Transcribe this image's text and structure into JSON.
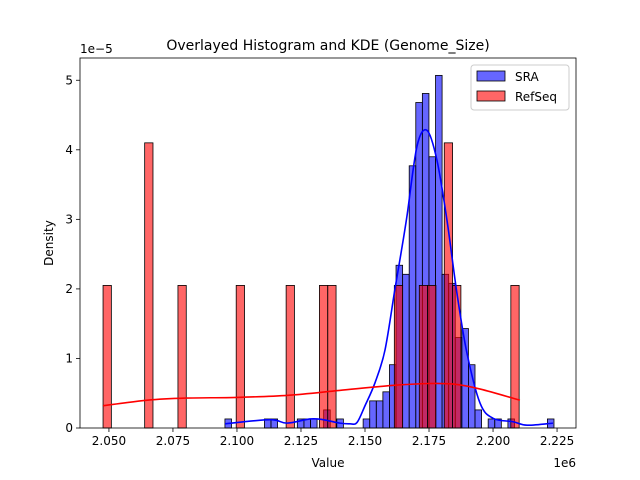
{
  "chart_data": {
    "type": "histogram+kde",
    "title": "Overlayed Histogram and KDE (Genome_Size)",
    "xlabel": "Value",
    "ylabel": "Density",
    "x_offset_label": "1e6",
    "y_offset_label": "1e−5",
    "xlim": [
      2.0387,
      2.2324
    ],
    "ylim": [
      0,
      5.32
    ],
    "x_ticks": [
      "2.050",
      "2.075",
      "2.100",
      "2.125",
      "2.150",
      "2.175",
      "2.200",
      "2.225"
    ],
    "x_tick_values": [
      2.05,
      2.075,
      2.1,
      2.125,
      2.15,
      2.175,
      2.2,
      2.225
    ],
    "y_ticks": [
      "0",
      "1",
      "2",
      "3",
      "4",
      "5"
    ],
    "y_tick_values": [
      0,
      1,
      2,
      3,
      4,
      5
    ],
    "grid": false,
    "legend_position": "top-right",
    "series": [
      {
        "name": "SRA",
        "color": "#0000ff",
        "bin_start": 2.0953,
        "bin_width": 0.00257,
        "heights": [
          0.13,
          0,
          0,
          0,
          0,
          0,
          0.13,
          0.13,
          0,
          0,
          0,
          0.13,
          0.13,
          0.13,
          0,
          0.26,
          0,
          0.13,
          0,
          0,
          0,
          0.13,
          0.39,
          0.39,
          0.52,
          0.91,
          2.34,
          2.21,
          3.77,
          4.68,
          4.81,
          3.9,
          5.07,
          2.21,
          2.08,
          1.3,
          1.43,
          0.91,
          0.26,
          0,
          0.13,
          0.13,
          0,
          0.13,
          0,
          0,
          0,
          0,
          0,
          0.13
        ],
        "kde": [
          [
            2.0953,
            0.06
          ],
          [
            2.1129,
            0.12
          ],
          [
            2.1195,
            0.07
          ],
          [
            2.1285,
            0.13
          ],
          [
            2.1336,
            0.12
          ],
          [
            2.1402,
            0.07
          ],
          [
            2.1441,
            0.06
          ],
          [
            2.1469,
            0.08
          ],
          [
            2.15,
            0.32
          ],
          [
            2.1539,
            0.65
          ],
          [
            2.1578,
            1.12
          ],
          [
            2.1617,
            2.0
          ],
          [
            2.164,
            2.5
          ],
          [
            2.1664,
            3.05
          ],
          [
            2.1703,
            4.05
          ],
          [
            2.1742,
            4.28
          ],
          [
            2.1781,
            3.85
          ],
          [
            2.182,
            2.99
          ],
          [
            2.1859,
            1.94
          ],
          [
            2.1898,
            1.08
          ],
          [
            2.1949,
            0.36
          ],
          [
            2.2,
            0.14
          ],
          [
            2.2078,
            0.09
          ],
          [
            2.2133,
            0.04
          ],
          [
            2.2234,
            0.07
          ]
        ]
      },
      {
        "name": "RefSeq",
        "color": "#ff0000",
        "bin_start": 2.0477,
        "bin_width": 0.00325,
        "heights": [
          2.05,
          0,
          0,
          0,
          0,
          4.1,
          0,
          0,
          0,
          2.05,
          0,
          0,
          0,
          0,
          0,
          0,
          2.05,
          0,
          0,
          0,
          0,
          0,
          2.05,
          0,
          0,
          0,
          2.05,
          2.05,
          0,
          0,
          0,
          0,
          0,
          0,
          0,
          2.05,
          0,
          0,
          2.05,
          2.05,
          0,
          4.1,
          2.05,
          0,
          0,
          0,
          0,
          0,
          0,
          2.05
        ],
        "kde": [
          [
            2.0477,
            0.32
          ],
          [
            2.065,
            0.4
          ],
          [
            2.08,
            0.43
          ],
          [
            2.1,
            0.44
          ],
          [
            2.12,
            0.47
          ],
          [
            2.14,
            0.54
          ],
          [
            2.16,
            0.61
          ],
          [
            2.175,
            0.64
          ],
          [
            2.185,
            0.63
          ],
          [
            2.195,
            0.56
          ],
          [
            2.2105,
            0.4
          ]
        ]
      }
    ]
  }
}
